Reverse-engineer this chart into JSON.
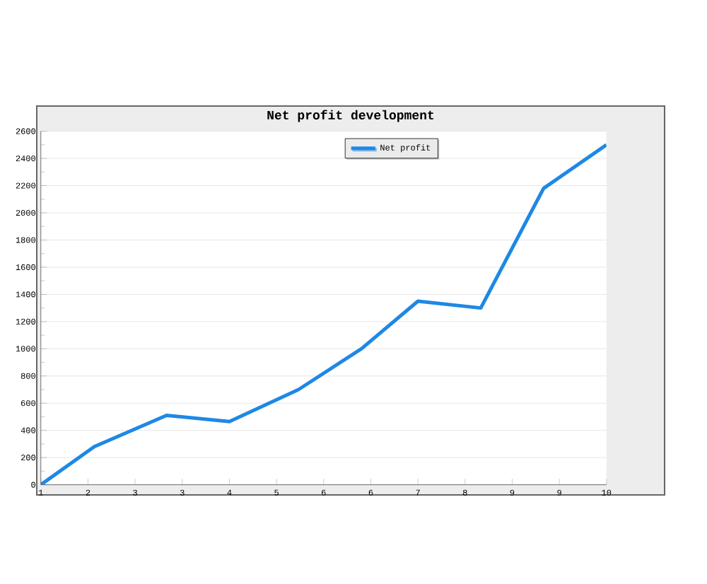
{
  "chart_data": {
    "type": "line",
    "title": "Net profit development",
    "x": [
      1,
      1.85,
      3,
      4,
      5.1,
      6.1,
      7,
      8,
      9,
      10
    ],
    "series": [
      {
        "name": "Net profit",
        "color": "#1e88e5",
        "values": [
          0,
          280,
          510,
          465,
          700,
          1000,
          1350,
          1300,
          2180,
          2500
        ]
      }
    ],
    "xlim": [
      1,
      10
    ],
    "xticks": [
      1,
      {
        "value": 1.75,
        "label": "2"
      },
      {
        "value": 2.5,
        "label": "3"
      },
      {
        "value": 3.25,
        "label": "3"
      },
      4,
      {
        "value": 4.75,
        "label": "5"
      },
      {
        "value": 5.5,
        "label": "6"
      },
      {
        "value": 6.25,
        "label": "6"
      },
      7,
      {
        "value": 7.75,
        "label": "8"
      },
      {
        "value": 8.5,
        "label": "9"
      },
      {
        "value": 9.25,
        "label": "9"
      },
      10
    ],
    "ylim": [
      0,
      2600
    ],
    "yticks": [
      0,
      200,
      400,
      600,
      800,
      1000,
      1200,
      1400,
      1600,
      1800,
      2000,
      2200,
      2400,
      2600
    ],
    "grid": "y",
    "legend": "top",
    "marker": "none",
    "line_style": "solid"
  }
}
